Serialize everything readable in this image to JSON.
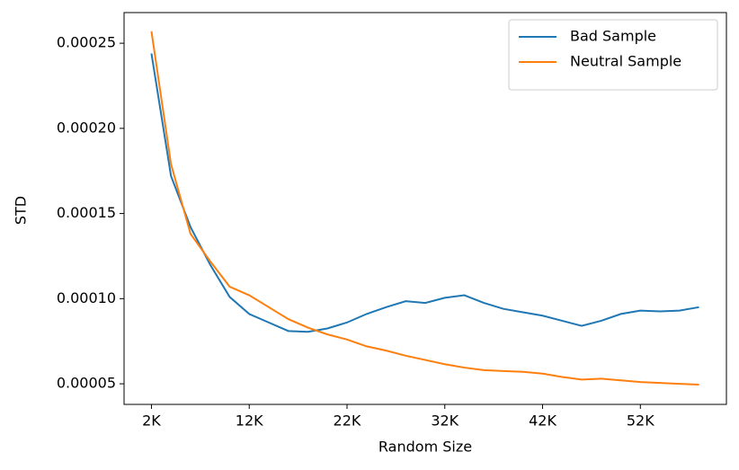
{
  "chart_data": {
    "type": "line",
    "xlabel": "Random Size",
    "ylabel": "STD",
    "x": [
      2000,
      4000,
      6000,
      8000,
      10000,
      12000,
      14000,
      16000,
      18000,
      20000,
      22000,
      24000,
      26000,
      28000,
      30000,
      32000,
      34000,
      36000,
      38000,
      40000,
      42000,
      44000,
      46000,
      48000,
      50000,
      52000,
      54000,
      56000,
      58000
    ],
    "series": [
      {
        "name": "Bad Sample",
        "color": "#1f77b4",
        "values": [
          0.000244,
          0.000172,
          0.000142,
          0.00012,
          0.000101,
          9.1e-05,
          8.6e-05,
          8.1e-05,
          8.05e-05,
          8.25e-05,
          8.6e-05,
          9.1e-05,
          9.5e-05,
          9.85e-05,
          9.75e-05,
          0.0001005,
          0.000102,
          9.75e-05,
          9.4e-05,
          9.2e-05,
          9e-05,
          8.7e-05,
          8.4e-05,
          8.7e-05,
          9.1e-05,
          9.3e-05,
          9.25e-05,
          9.3e-05,
          9.5e-05
        ]
      },
      {
        "name": "Neutral Sample",
        "color": "#ff7f0e",
        "values": [
          0.000257,
          0.000179,
          0.000138,
          0.000122,
          0.000107,
          0.000102,
          9.5e-05,
          8.8e-05,
          8.3e-05,
          7.9e-05,
          7.6e-05,
          7.2e-05,
          6.95e-05,
          6.65e-05,
          6.4e-05,
          6.15e-05,
          5.95e-05,
          5.8e-05,
          5.75e-05,
          5.7e-05,
          5.6e-05,
          5.4e-05,
          5.25e-05,
          5.3e-05,
          5.2e-05,
          5.1e-05,
          5.05e-05,
          5e-05,
          4.95e-05
        ]
      }
    ],
    "xlim": [
      -800,
      60800
    ],
    "ylim": [
      3.79e-05,
      0.000268
    ],
    "xticks": [
      {
        "value": 2000,
        "label": "2K"
      },
      {
        "value": 12000,
        "label": "12K"
      },
      {
        "value": 22000,
        "label": "22K"
      },
      {
        "value": 32000,
        "label": "32K"
      },
      {
        "value": 42000,
        "label": "42K"
      },
      {
        "value": 52000,
        "label": "52K"
      }
    ],
    "yticks": [
      {
        "value": 5e-05,
        "label": "0.00005"
      },
      {
        "value": 0.0001,
        "label": "0.00010"
      },
      {
        "value": 0.00015,
        "label": "0.00015"
      },
      {
        "value": 0.0002,
        "label": "0.00020"
      },
      {
        "value": 0.00025,
        "label": "0.00025"
      }
    ],
    "legend": "upper right"
  }
}
